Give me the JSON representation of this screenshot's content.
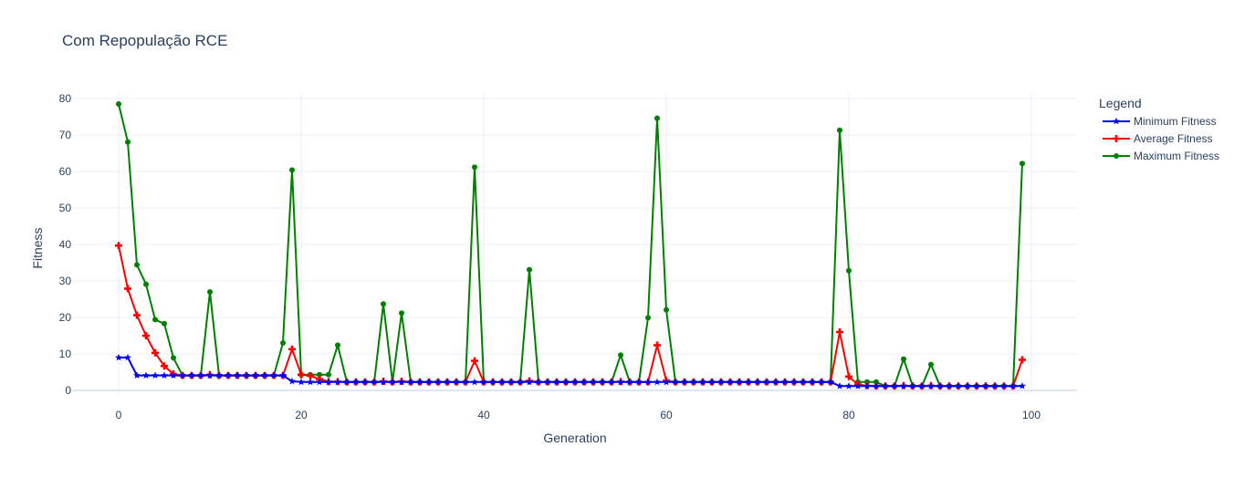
{
  "chart_data": {
    "type": "line",
    "title": "Com Repopulação RCE",
    "xlabel": "Generation",
    "ylabel": "Fitness",
    "xlim": [
      -5,
      105
    ],
    "ylim": [
      -1,
      82
    ],
    "xticks": [
      0,
      20,
      40,
      60,
      80,
      100
    ],
    "yticks": [
      0,
      10,
      20,
      30,
      40,
      50,
      60,
      70,
      80
    ],
    "grid": true,
    "legend": {
      "title": "Legend",
      "placement": "right"
    },
    "x": [
      0,
      1,
      2,
      3,
      4,
      5,
      6,
      7,
      8,
      9,
      10,
      11,
      12,
      13,
      14,
      15,
      16,
      17,
      18,
      19,
      20,
      21,
      22,
      23,
      24,
      25,
      26,
      27,
      28,
      29,
      30,
      31,
      32,
      33,
      34,
      35,
      36,
      37,
      38,
      39,
      40,
      41,
      42,
      43,
      44,
      45,
      46,
      47,
      48,
      49,
      50,
      51,
      52,
      53,
      54,
      55,
      56,
      57,
      58,
      59,
      60,
      61,
      62,
      63,
      64,
      65,
      66,
      67,
      68,
      69,
      70,
      71,
      72,
      73,
      74,
      75,
      76,
      77,
      78,
      79,
      80,
      81,
      82,
      83,
      84,
      85,
      86,
      87,
      88,
      89,
      90,
      91,
      92,
      93,
      94,
      95,
      96,
      97,
      98,
      99
    ],
    "series": [
      {
        "name": "Minimum Fitness",
        "color": "#0000ff",
        "marker": "star",
        "values": [
          9,
          9,
          4.1,
          4.1,
          4.1,
          4.1,
          4.1,
          4.1,
          4.1,
          4.1,
          4.1,
          4.1,
          4.1,
          4.1,
          4.1,
          4.1,
          4.1,
          4.1,
          4.1,
          2.5,
          2.3,
          2.3,
          2.3,
          2.3,
          2.3,
          2.3,
          2.3,
          2.3,
          2.3,
          2.3,
          2.3,
          2.3,
          2.3,
          2.3,
          2.3,
          2.3,
          2.3,
          2.3,
          2.3,
          2.3,
          2.3,
          2.3,
          2.3,
          2.3,
          2.3,
          2.3,
          2.3,
          2.3,
          2.3,
          2.3,
          2.3,
          2.3,
          2.3,
          2.3,
          2.3,
          2.3,
          2.3,
          2.3,
          2.3,
          2.3,
          2.3,
          2.3,
          2.3,
          2.3,
          2.3,
          2.3,
          2.3,
          2.3,
          2.3,
          2.3,
          2.3,
          2.3,
          2.3,
          2.3,
          2.3,
          2.3,
          2.3,
          2.3,
          2.3,
          1.2,
          1.2,
          1.2,
          1.2,
          1.2,
          1.2,
          1.2,
          1.2,
          1.2,
          1.2,
          1.2,
          1.2,
          1.2,
          1.2,
          1.2,
          1.2,
          1.2,
          1.2,
          1.2,
          1.2,
          1.2
        ]
      },
      {
        "name": "Average Fitness",
        "color": "#ff0000",
        "marker": "cross",
        "values": [
          39.7,
          27.9,
          20.6,
          15,
          10.3,
          6.7,
          4.5,
          4.1,
          4.1,
          4.1,
          4.3,
          4.1,
          4.1,
          4.1,
          4.1,
          4.1,
          4.1,
          4.1,
          4.1,
          11.3,
          4.3,
          4,
          3.1,
          2.4,
          2.4,
          2.3,
          2.3,
          2.3,
          2.3,
          2.5,
          2.3,
          2.5,
          2.3,
          2.3,
          2.3,
          2.3,
          2.3,
          2.3,
          2.3,
          8.1,
          2.3,
          2.3,
          2.3,
          2.3,
          2.3,
          2.6,
          2.3,
          2.3,
          2.3,
          2.3,
          2.3,
          2.3,
          2.3,
          2.3,
          2.3,
          2.4,
          2.3,
          2.3,
          2.3,
          12.4,
          2.7,
          2.3,
          2.3,
          2.3,
          2.3,
          2.3,
          2.3,
          2.3,
          2.3,
          2.3,
          2.3,
          2.3,
          2.3,
          2.3,
          2.3,
          2.3,
          2.3,
          2.3,
          2.3,
          16,
          3.8,
          1.6,
          1.3,
          1.2,
          1.2,
          1.2,
          1.3,
          1.2,
          1.2,
          1.3,
          1.2,
          1.2,
          1.2,
          1.2,
          1.2,
          1.2,
          1.2,
          1.2,
          1.2,
          8.4
        ]
      },
      {
        "name": "Maximum Fitness",
        "color": "#008000",
        "marker": "circle",
        "values": [
          78.5,
          68.1,
          34.4,
          29.1,
          19.4,
          18.3,
          8.9,
          4.1,
          4.1,
          4.1,
          27,
          4.1,
          4.1,
          4.1,
          4.1,
          4.1,
          4.1,
          4.1,
          13,
          60.4,
          4.3,
          4.3,
          4.3,
          4.3,
          12.4,
          2.3,
          2.3,
          2.3,
          2.3,
          23.7,
          2.3,
          21.2,
          2.3,
          2.3,
          2.3,
          2.3,
          2.3,
          2.3,
          2.3,
          61.2,
          2.3,
          2.3,
          2.3,
          2.3,
          2.3,
          33.1,
          2.3,
          2.3,
          2.3,
          2.3,
          2.3,
          2.3,
          2.3,
          2.3,
          2.3,
          9.7,
          2.3,
          2.3,
          19.9,
          74.6,
          22.1,
          2.3,
          2.3,
          2.3,
          2.3,
          2.3,
          2.3,
          2.3,
          2.3,
          2.3,
          2.3,
          2.3,
          2.3,
          2.3,
          2.3,
          2.3,
          2.3,
          2.3,
          2.3,
          71.3,
          32.8,
          2.3,
          2.3,
          2.3,
          1.2,
          1.2,
          8.6,
          1.2,
          1.2,
          7.1,
          1.2,
          1.2,
          1.2,
          1.2,
          1.2,
          1.2,
          1.2,
          1.2,
          1.2,
          62.2
        ]
      }
    ]
  }
}
